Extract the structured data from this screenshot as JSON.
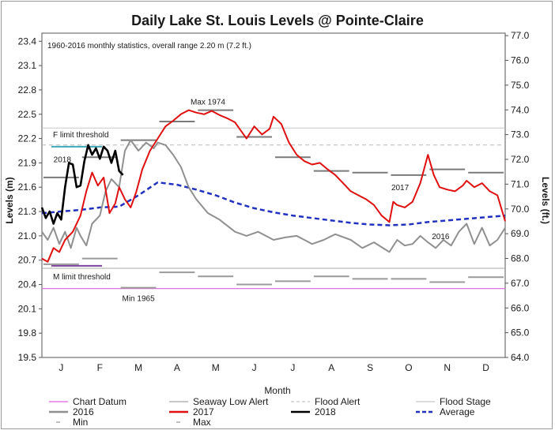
{
  "chart_data": {
    "type": "line",
    "title": "Daily Lake St. Louis Levels @ Pointe-Claire",
    "subtitle": "1960-2016 monthly statistics, overall range 2.20 m (7.2 ft.)",
    "xlabel": "Month",
    "ylabel_left": "Levels (m)",
    "ylabel_right": "Levels (ft.)",
    "x_categories": [
      "J",
      "F",
      "M",
      "A",
      "M",
      "J",
      "J",
      "A",
      "S",
      "O",
      "N",
      "D"
    ],
    "ylim_m": [
      19.5,
      23.5
    ],
    "yticks_m": [
      "23.4",
      "23.1",
      "22.8",
      "22.5",
      "22.2",
      "21.9",
      "21.6",
      "21.3",
      "21.0",
      "20.7",
      "20.4",
      "20.1",
      "19.8",
      "19.5"
    ],
    "ylim_ft": [
      64.0,
      77.1
    ],
    "yticks_ft": [
      "77.0",
      "76.0",
      "75.0",
      "74.0",
      "73.0",
      "72.0",
      "71.0",
      "70.0",
      "69.0",
      "68.0",
      "67.0",
      "66.0",
      "65.0",
      "64.0"
    ],
    "thresholds": {
      "chart_datum": 20.35,
      "seaway_low_alert": 20.6,
      "flood_alert": 22.12,
      "flood_stage": 22.33
    },
    "annotations": {
      "f_limit": "F limit threshold",
      "m_limit": "M limit threshold",
      "max_1974": "Max 1974",
      "min_1965": "Min 1965",
      "label_2018": "2018",
      "label_2017": "2017",
      "label_2016": "2016"
    },
    "monthly_max": [
      21.72,
      21.97,
      22.18,
      22.41,
      22.55,
      22.22,
      21.97,
      21.8,
      21.78,
      21.75,
      21.82,
      21.78
    ],
    "monthly_min": [
      20.65,
      20.72,
      20.36,
      20.55,
      20.5,
      20.4,
      20.44,
      20.5,
      20.47,
      20.47,
      20.43,
      20.49
    ],
    "series": [
      {
        "name": "Average",
        "x": [
          0,
          0.5,
          1,
          1.5,
          2,
          2.5,
          3,
          3.5,
          4,
          4.5,
          5,
          5.5,
          6,
          6.5,
          7,
          7.5,
          8,
          8.5,
          9,
          9.5,
          10,
          10.5,
          11,
          11.5,
          12
        ],
        "values": [
          21.28,
          21.3,
          21.32,
          21.35,
          21.36,
          21.5,
          21.66,
          21.63,
          21.57,
          21.5,
          21.41,
          21.34,
          21.29,
          21.25,
          21.22,
          21.19,
          21.16,
          21.14,
          21.13,
          21.14,
          21.17,
          21.19,
          21.21,
          21.23,
          21.25
        ]
      },
      {
        "name": "2016",
        "x": [
          0,
          0.15,
          0.3,
          0.45,
          0.6,
          0.75,
          0.9,
          1,
          1.15,
          1.3,
          1.5,
          1.65,
          1.8,
          2,
          2.15,
          2.3,
          2.5,
          2.7,
          2.9,
          3,
          3.2,
          3.4,
          3.6,
          3.8,
          4,
          4.3,
          4.6,
          5,
          5.3,
          5.6,
          6,
          6.3,
          6.6,
          7,
          7.3,
          7.6,
          8,
          8.3,
          8.6,
          9,
          9.2,
          9.4,
          9.6,
          9.8,
          10,
          10.2,
          10.4,
          10.6,
          10.8,
          11,
          11.2,
          11.4,
          11.6,
          11.8,
          12
        ],
        "values": [
          21.05,
          20.95,
          21.1,
          20.9,
          21.05,
          20.85,
          21.1,
          21.0,
          20.88,
          21.15,
          21.25,
          21.55,
          21.7,
          21.6,
          22.05,
          22.18,
          22.05,
          22.15,
          22.08,
          22.15,
          22.12,
          22.0,
          21.85,
          21.6,
          21.45,
          21.28,
          21.2,
          21.05,
          21.0,
          21.05,
          20.95,
          20.98,
          21.0,
          20.9,
          20.95,
          21.02,
          20.95,
          20.85,
          20.92,
          20.8,
          20.95,
          20.88,
          20.9,
          21.0,
          20.92,
          20.85,
          20.95,
          20.88,
          21.05,
          21.15,
          20.9,
          21.1,
          20.88,
          20.95,
          21.1
        ]
      },
      {
        "name": "2017",
        "x": [
          0,
          0.15,
          0.3,
          0.45,
          0.6,
          0.8,
          1,
          1.15,
          1.3,
          1.45,
          1.6,
          1.75,
          1.9,
          2,
          2.15,
          2.3,
          2.45,
          2.6,
          2.8,
          3,
          3.2,
          3.4,
          3.6,
          3.8,
          4,
          4.2,
          4.4,
          4.6,
          4.8,
          5,
          5.15,
          5.3,
          5.5,
          5.7,
          5.9,
          6,
          6.2,
          6.4,
          6.6,
          6.8,
          7,
          7.2,
          7.4,
          7.6,
          7.8,
          8,
          8.2,
          8.4,
          8.6,
          8.8,
          9,
          9.1,
          9.2,
          9.4,
          9.6,
          9.8,
          10,
          10.15,
          10.3,
          10.5,
          10.7,
          10.9,
          11,
          11.2,
          11.4,
          11.6,
          11.8,
          12
        ],
        "values": [
          20.72,
          20.68,
          20.85,
          20.8,
          20.95,
          21.05,
          21.25,
          21.55,
          21.78,
          21.62,
          21.72,
          21.28,
          21.4,
          21.6,
          21.45,
          21.35,
          21.55,
          21.82,
          22.05,
          22.2,
          22.35,
          22.42,
          22.5,
          22.55,
          22.52,
          22.5,
          22.54,
          22.49,
          22.45,
          22.4,
          22.3,
          22.2,
          22.35,
          22.25,
          22.32,
          22.47,
          22.38,
          22.15,
          22.0,
          21.92,
          21.88,
          21.9,
          21.82,
          21.75,
          21.65,
          21.55,
          21.5,
          21.45,
          21.38,
          21.25,
          21.17,
          21.42,
          21.38,
          21.35,
          21.42,
          21.65,
          22.0,
          21.75,
          21.6,
          21.57,
          21.55,
          21.62,
          21.68,
          21.6,
          21.65,
          21.55,
          21.5,
          21.18
        ]
      },
      {
        "name": "2018",
        "x": [
          0,
          0.1,
          0.2,
          0.3,
          0.4,
          0.5,
          0.6,
          0.7,
          0.8,
          0.9,
          1,
          1.1,
          1.2,
          1.3,
          1.4,
          1.5,
          1.6,
          1.7,
          1.8,
          1.9,
          2,
          2.1
        ],
        "values": [
          21.35,
          21.22,
          21.3,
          21.15,
          21.28,
          21.2,
          21.6,
          21.9,
          21.88,
          21.6,
          21.62,
          21.92,
          22.12,
          22.0,
          22.08,
          21.95,
          22.1,
          22.05,
          21.9,
          22.05,
          21.8,
          21.75
        ]
      }
    ],
    "legend": [
      {
        "label": "Chart Datum",
        "color": "#e060e0",
        "style": "solid"
      },
      {
        "label": "Seaway Low Alert",
        "color": "#a8a8a8",
        "style": "solid"
      },
      {
        "label": "Flood Alert",
        "color": "#b8b8b8",
        "style": "dashed"
      },
      {
        "label": "Flood Stage",
        "color": "#c8c8c8",
        "style": "solid"
      },
      {
        "label": "2016",
        "color": "#909090",
        "style": "thick"
      },
      {
        "label": "2017",
        "color": "#e01010",
        "style": "thick"
      },
      {
        "label": "2018",
        "color": "#000000",
        "style": "thick"
      },
      {
        "label": "Average",
        "color": "#2030c0",
        "style": "thickdash"
      },
      {
        "label": "Min",
        "color": "#808080",
        "style": "short"
      },
      {
        "label": "Max",
        "color": "#808080",
        "style": "short"
      }
    ],
    "grid": false,
    "legend_position": "bottom"
  }
}
